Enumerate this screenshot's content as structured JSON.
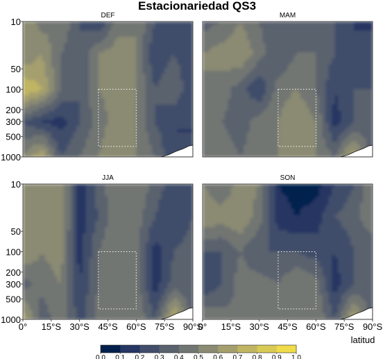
{
  "chart_data": {
    "type": "heatmap",
    "title": "Estacionariedad QS3",
    "xlabel": "latitud",
    "ylabel": "",
    "x_ticks": [
      "0°",
      "15°S",
      "30°S",
      "45°S",
      "60°S",
      "75°S",
      "90°S"
    ],
    "x_range": [
      0,
      90
    ],
    "y_ticks": [
      "10",
      "50",
      "100",
      "200",
      "300",
      "500",
      "1000"
    ],
    "y_tick_values": [
      10,
      50,
      100,
      200,
      300,
      500,
      1000
    ],
    "y_scale": "log",
    "y_range": [
      1000,
      10
    ],
    "color_ticks": [
      "0.0",
      "0.1",
      "0.2",
      "0.3",
      "0.4",
      "0.5",
      "0.6",
      "0.7",
      "0.8",
      "0.9",
      "1.0"
    ],
    "color_range": [
      0,
      1
    ],
    "colors": [
      "#03204d",
      "#253662",
      "#414d6b",
      "#5a626e",
      "#727672",
      "#8b8b73",
      "#a59f6e",
      "#c0b563",
      "#d9ca56",
      "#f0dc4a"
    ],
    "box_region": {
      "lat": [
        40,
        60
      ],
      "pressure_hPa": [
        100,
        700
      ]
    },
    "panels": [
      {
        "season": "DEF",
        "lat": [
          0,
          10,
          20,
          30,
          40,
          50,
          60,
          70,
          80,
          90
        ],
        "p": [
          10,
          30,
          100,
          300,
          1000
        ],
        "values": [
          [
            0.6,
            0.45,
            0.5,
            0.3,
            0.2,
            0.45,
            0.5,
            0.3,
            0.2,
            0.3
          ],
          [
            0.5,
            0.6,
            0.4,
            0.3,
            0.5,
            0.55,
            0.5,
            0.2,
            0.3,
            0.2
          ],
          [
            0.8,
            0.7,
            0.4,
            0.3,
            0.5,
            0.55,
            0.5,
            0.3,
            0.4,
            0.2
          ],
          [
            0.3,
            0.2,
            0.15,
            0.3,
            0.45,
            0.55,
            0.5,
            0.3,
            0.2,
            0.2
          ],
          [
            0.5,
            0.7,
            0.3,
            0.4,
            0.5,
            0.6,
            0.5,
            0.4,
            0.2,
            0.2
          ]
        ]
      },
      {
        "season": "MAM",
        "lat": [
          0,
          10,
          20,
          30,
          40,
          50,
          60,
          70,
          80,
          90
        ],
        "p": [
          10,
          30,
          100,
          300,
          1000
        ],
        "values": [
          [
            0.35,
            0.4,
            0.5,
            0.4,
            0.3,
            0.35,
            0.35,
            0.3,
            0.2,
            0.15
          ],
          [
            0.5,
            0.55,
            0.6,
            0.45,
            0.3,
            0.4,
            0.4,
            0.3,
            0.2,
            0.3
          ],
          [
            0.5,
            0.45,
            0.35,
            0.2,
            0.45,
            0.5,
            0.4,
            0.2,
            0.3,
            0.3
          ],
          [
            0.5,
            0.4,
            0.35,
            0.45,
            0.5,
            0.6,
            0.5,
            0.15,
            0.3,
            0.35
          ],
          [
            0.5,
            0.45,
            0.4,
            0.45,
            0.5,
            0.55,
            0.5,
            0.4,
            0.7,
            0.3
          ]
        ]
      },
      {
        "season": "JJA",
        "lat": [
          0,
          10,
          20,
          30,
          40,
          50,
          60,
          70,
          80,
          90
        ],
        "p": [
          10,
          30,
          100,
          300,
          1000
        ],
        "values": [
          [
            0.55,
            0.5,
            0.6,
            0.15,
            0.35,
            0.5,
            0.5,
            0.35,
            0.25,
            0.3
          ],
          [
            0.5,
            0.5,
            0.6,
            0.15,
            0.3,
            0.5,
            0.45,
            0.3,
            0.2,
            0.3
          ],
          [
            0.6,
            0.5,
            0.55,
            0.15,
            0.4,
            0.5,
            0.45,
            0.15,
            0.3,
            0.35
          ],
          [
            0.35,
            0.45,
            0.5,
            0.2,
            0.4,
            0.5,
            0.45,
            0.15,
            0.35,
            0.3
          ],
          [
            0.7,
            0.3,
            0.5,
            0.25,
            0.45,
            0.5,
            0.5,
            0.3,
            0.75,
            0.35
          ]
        ]
      },
      {
        "season": "SON",
        "lat": [
          0,
          10,
          20,
          30,
          40,
          50,
          60,
          70,
          80,
          90
        ],
        "p": [
          10,
          30,
          100,
          300,
          1000
        ],
        "values": [
          [
            0.5,
            0.4,
            0.55,
            0.5,
            0.1,
            0.05,
            0.05,
            0.2,
            0.3,
            0.5
          ],
          [
            0.6,
            0.55,
            0.6,
            0.45,
            0.15,
            0.1,
            0.15,
            0.3,
            0.35,
            0.5
          ],
          [
            0.3,
            0.3,
            0.4,
            0.3,
            0.3,
            0.3,
            0.25,
            0.2,
            0.3,
            0.3
          ],
          [
            0.2,
            0.3,
            0.45,
            0.45,
            0.4,
            0.5,
            0.45,
            0.15,
            0.3,
            0.35
          ],
          [
            0.5,
            0.45,
            0.4,
            0.5,
            0.5,
            0.5,
            0.5,
            0.3,
            0.7,
            0.3
          ]
        ]
      }
    ]
  }
}
